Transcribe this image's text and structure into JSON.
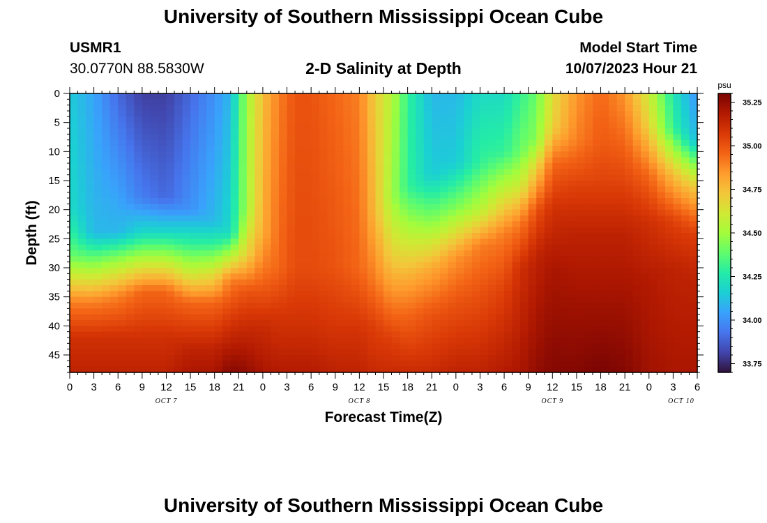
{
  "header": {
    "title": "University of Southern Mississippi Ocean Cube",
    "station": "USMR1",
    "coords": "30.0770N  88.5830W",
    "subtitle": "2-D Salinity at Depth",
    "model_label": "Model Start Time",
    "model_time": "10/07/2023 Hour 21"
  },
  "footer": {
    "title": "University of Southern Mississippi Ocean Cube"
  },
  "chart_data": {
    "type": "heatmap",
    "title": "2-D Salinity at Depth",
    "xlabel": "Forecast Time(Z)",
    "ylabel": "Depth (ft)",
    "x_ticks": [
      "0",
      "3",
      "6",
      "9",
      "12",
      "15",
      "18",
      "21",
      "0",
      "3",
      "6",
      "9",
      "12",
      "15",
      "18",
      "21",
      "0",
      "3",
      "6",
      "9",
      "12",
      "15",
      "18",
      "21",
      "0",
      "3",
      "6"
    ],
    "x_range_hours": [
      0,
      78
    ],
    "date_labels": [
      {
        "label": "OCT 7",
        "hour": 12
      },
      {
        "label": "OCT 8",
        "hour": 36
      },
      {
        "label": "OCT 9",
        "hour": 60
      },
      {
        "label": "OCT 10",
        "hour": 76
      }
    ],
    "y_ticks": [
      "0",
      "5",
      "10",
      "15",
      "20",
      "25",
      "30",
      "35",
      "40",
      "45"
    ],
    "y_range_ft": [
      0,
      48
    ],
    "colorbar": {
      "unit": "psu",
      "range": [
        33.7,
        35.3
      ],
      "ticks": [
        "35.25",
        "35.00",
        "34.75",
        "34.50",
        "34.25",
        "34.00",
        "33.75"
      ],
      "colors": [
        "#30123b",
        "#4145ab",
        "#4675ed",
        "#39a2fc",
        "#1bcfd4",
        "#24eca6",
        "#61fc6c",
        "#a4fc3b",
        "#d1e834",
        "#f3c63a",
        "#fe9b2d",
        "#f36315",
        "#d93806",
        "#b11901",
        "#7a0402"
      ]
    },
    "profiles": [
      {
        "hour": 0,
        "values": [
          [
            0,
            34.15
          ],
          [
            20,
            34.2
          ],
          [
            28,
            34.4
          ],
          [
            36,
            34.9
          ],
          [
            42,
            35.1
          ],
          [
            48,
            35.15
          ]
        ]
      },
      {
        "hour": 3,
        "values": [
          [
            0,
            34.05
          ],
          [
            24,
            34.1
          ],
          [
            30,
            34.5
          ],
          [
            36,
            34.9
          ],
          [
            42,
            35.1
          ],
          [
            48,
            35.15
          ]
        ]
      },
      {
        "hour": 6,
        "values": [
          [
            0,
            33.9
          ],
          [
            24,
            34.1
          ],
          [
            29,
            34.5
          ],
          [
            35,
            34.9
          ],
          [
            42,
            35.1
          ],
          [
            48,
            35.15
          ]
        ]
      },
      {
        "hour": 9,
        "values": [
          [
            0,
            33.8
          ],
          [
            18,
            33.95
          ],
          [
            24,
            34.2
          ],
          [
            28,
            34.5
          ],
          [
            34,
            34.95
          ],
          [
            42,
            35.1
          ],
          [
            48,
            35.15
          ]
        ]
      },
      {
        "hour": 12,
        "values": [
          [
            0,
            33.8
          ],
          [
            18,
            33.9
          ],
          [
            24,
            34.2
          ],
          [
            28,
            34.5
          ],
          [
            34,
            34.95
          ],
          [
            42,
            35.1
          ],
          [
            48,
            35.15
          ]
        ]
      },
      {
        "hour": 15,
        "values": [
          [
            0,
            33.9
          ],
          [
            20,
            34.0
          ],
          [
            26,
            34.3
          ],
          [
            31,
            34.6
          ],
          [
            36,
            34.95
          ],
          [
            44,
            35.15
          ],
          [
            48,
            35.2
          ]
        ]
      },
      {
        "hour": 18,
        "values": [
          [
            0,
            34.0
          ],
          [
            22,
            34.1
          ],
          [
            26,
            34.3
          ],
          [
            31,
            34.65
          ],
          [
            36,
            34.95
          ],
          [
            44,
            35.15
          ],
          [
            48,
            35.2
          ]
        ]
      },
      {
        "hour": 20,
        "values": [
          [
            0,
            34.1
          ],
          [
            24,
            34.2
          ],
          [
            28,
            34.55
          ],
          [
            32,
            34.9
          ],
          [
            40,
            35.1
          ],
          [
            48,
            35.28
          ]
        ]
      },
      {
        "hour": 22,
        "values": [
          [
            0,
            34.5
          ],
          [
            20,
            34.5
          ],
          [
            28,
            34.7
          ],
          [
            34,
            35.0
          ],
          [
            40,
            35.12
          ],
          [
            48,
            35.25
          ]
        ]
      },
      {
        "hour": 24,
        "values": [
          [
            0,
            34.75
          ],
          [
            24,
            34.8
          ],
          [
            32,
            34.95
          ],
          [
            40,
            35.12
          ],
          [
            48,
            35.2
          ]
        ]
      },
      {
        "hour": 26,
        "values": [
          [
            0,
            34.9
          ],
          [
            30,
            34.95
          ],
          [
            38,
            35.08
          ],
          [
            48,
            35.18
          ]
        ]
      },
      {
        "hour": 28,
        "values": [
          [
            0,
            35.0
          ],
          [
            30,
            35.02
          ],
          [
            40,
            35.1
          ],
          [
            48,
            35.18
          ]
        ]
      },
      {
        "hour": 30,
        "values": [
          [
            0,
            35.0
          ],
          [
            30,
            35.02
          ],
          [
            40,
            35.1
          ],
          [
            48,
            35.18
          ]
        ]
      },
      {
        "hour": 33,
        "values": [
          [
            0,
            34.95
          ],
          [
            30,
            35.0
          ],
          [
            40,
            35.08
          ],
          [
            48,
            35.15
          ]
        ]
      },
      {
        "hour": 36,
        "values": [
          [
            0,
            34.9
          ],
          [
            30,
            34.95
          ],
          [
            40,
            35.08
          ],
          [
            48,
            35.15
          ]
        ]
      },
      {
        "hour": 38,
        "values": [
          [
            0,
            34.7
          ],
          [
            20,
            34.75
          ],
          [
            32,
            34.9
          ],
          [
            40,
            35.05
          ],
          [
            48,
            35.12
          ]
        ]
      },
      {
        "hour": 40,
        "values": [
          [
            0,
            34.55
          ],
          [
            18,
            34.5
          ],
          [
            28,
            34.7
          ],
          [
            36,
            34.9
          ],
          [
            42,
            35.05
          ],
          [
            48,
            35.12
          ]
        ]
      },
      {
        "hour": 42,
        "values": [
          [
            0,
            34.3
          ],
          [
            16,
            34.3
          ],
          [
            24,
            34.55
          ],
          [
            32,
            34.8
          ],
          [
            38,
            34.95
          ],
          [
            48,
            35.12
          ]
        ]
      },
      {
        "hour": 45,
        "values": [
          [
            0,
            34.1
          ],
          [
            14,
            34.15
          ],
          [
            22,
            34.45
          ],
          [
            30,
            34.8
          ],
          [
            38,
            35.0
          ],
          [
            48,
            35.12
          ]
        ]
      },
      {
        "hour": 48,
        "values": [
          [
            0,
            34.1
          ],
          [
            12,
            34.15
          ],
          [
            20,
            34.45
          ],
          [
            28,
            34.85
          ],
          [
            36,
            35.0
          ],
          [
            48,
            35.15
          ]
        ]
      },
      {
        "hour": 51,
        "values": [
          [
            0,
            34.2
          ],
          [
            12,
            34.3
          ],
          [
            20,
            34.55
          ],
          [
            26,
            34.9
          ],
          [
            34,
            35.0
          ],
          [
            48,
            35.15
          ]
        ]
      },
      {
        "hour": 54,
        "values": [
          [
            0,
            34.2
          ],
          [
            10,
            34.3
          ],
          [
            16,
            34.55
          ],
          [
            24,
            34.9
          ],
          [
            34,
            35.05
          ],
          [
            48,
            35.18
          ]
        ]
      },
      {
        "hour": 56,
        "values": [
          [
            0,
            34.3
          ],
          [
            10,
            34.4
          ],
          [
            16,
            34.6
          ],
          [
            22,
            34.9
          ],
          [
            30,
            35.1
          ],
          [
            48,
            35.2
          ]
        ]
      },
      {
        "hour": 58,
        "values": [
          [
            0,
            34.4
          ],
          [
            8,
            34.45
          ],
          [
            14,
            34.75
          ],
          [
            20,
            35.0
          ],
          [
            28,
            35.15
          ],
          [
            48,
            35.25
          ]
        ]
      },
      {
        "hour": 60,
        "values": [
          [
            0,
            34.65
          ],
          [
            6,
            34.7
          ],
          [
            12,
            34.95
          ],
          [
            20,
            35.1
          ],
          [
            30,
            35.2
          ],
          [
            48,
            35.28
          ]
        ]
      },
      {
        "hour": 63,
        "values": [
          [
            0,
            34.85
          ],
          [
            8,
            34.9
          ],
          [
            16,
            35.05
          ],
          [
            24,
            35.15
          ],
          [
            36,
            35.22
          ],
          [
            48,
            35.28
          ]
        ]
      },
      {
        "hour": 66,
        "values": [
          [
            0,
            34.95
          ],
          [
            8,
            34.98
          ],
          [
            16,
            35.05
          ],
          [
            24,
            35.15
          ],
          [
            36,
            35.22
          ],
          [
            48,
            35.3
          ]
        ]
      },
      {
        "hour": 69,
        "values": [
          [
            0,
            34.85
          ],
          [
            8,
            34.95
          ],
          [
            16,
            35.05
          ],
          [
            24,
            35.15
          ],
          [
            36,
            35.22
          ],
          [
            48,
            35.28
          ]
        ]
      },
      {
        "hour": 72,
        "values": [
          [
            0,
            34.6
          ],
          [
            6,
            34.7
          ],
          [
            14,
            34.95
          ],
          [
            22,
            35.1
          ],
          [
            32,
            35.18
          ],
          [
            48,
            35.22
          ]
        ]
      },
      {
        "hour": 75,
        "values": [
          [
            0,
            34.25
          ],
          [
            6,
            34.3
          ],
          [
            14,
            34.75
          ],
          [
            22,
            35.05
          ],
          [
            30,
            35.15
          ],
          [
            48,
            35.2
          ]
        ]
      },
      {
        "hour": 78,
        "values": [
          [
            0,
            34.0
          ],
          [
            8,
            34.1
          ],
          [
            16,
            34.7
          ],
          [
            24,
            35.05
          ],
          [
            32,
            35.15
          ],
          [
            48,
            35.2
          ]
        ]
      }
    ]
  }
}
